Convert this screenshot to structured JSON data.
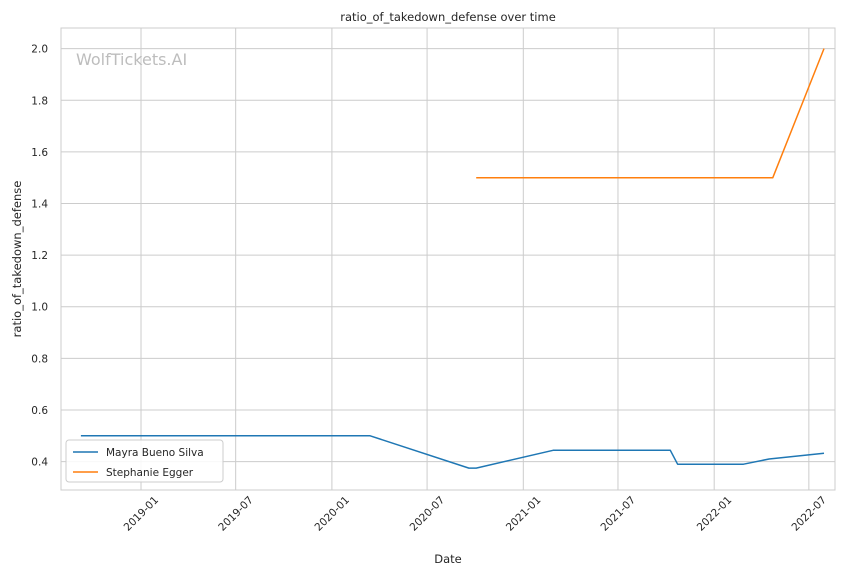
{
  "chart_data": {
    "type": "line",
    "title": "ratio_of_takedown_defense over time",
    "xlabel": "Date",
    "ylabel": "ratio_of_takedown_defense",
    "watermark": "WolfTickets.AI",
    "x_axis_type": "date",
    "xlim": [
      "2018-08-01",
      "2022-08-20"
    ],
    "ylim": [
      0.29,
      2.08
    ],
    "x_ticks": [
      "2019-01-01",
      "2019-07-01",
      "2020-01-01",
      "2020-07-01",
      "2021-01-01",
      "2021-07-01",
      "2022-01-01",
      "2022-07-01"
    ],
    "x_tick_labels": [
      "2019-01",
      "2019-07",
      "2020-01",
      "2020-07",
      "2021-01",
      "2021-07",
      "2022-01",
      "2022-07"
    ],
    "y_ticks": [
      0.4,
      0.6,
      0.8,
      1.0,
      1.2,
      1.4,
      1.6,
      1.8,
      2.0
    ],
    "y_tick_labels": [
      "0.4",
      "0.6",
      "0.8",
      "1.0",
      "1.2",
      "1.4",
      "1.6",
      "1.8",
      "2.0"
    ],
    "grid": true,
    "legend_position": "lower-left",
    "series": [
      {
        "name": "Mayra Bueno Silva",
        "color": "#1f77b4",
        "points": [
          {
            "x": "2018-09-08",
            "y": 0.5
          },
          {
            "x": "2020-03-14",
            "y": 0.5
          },
          {
            "x": "2020-09-19",
            "y": 0.375
          },
          {
            "x": "2020-10-03",
            "y": 0.375
          },
          {
            "x": "2021-02-27",
            "y": 0.444
          },
          {
            "x": "2021-10-09",
            "y": 0.444
          },
          {
            "x": "2021-10-23",
            "y": 0.39
          },
          {
            "x": "2022-02-26",
            "y": 0.39
          },
          {
            "x": "2022-04-16",
            "y": 0.41
          },
          {
            "x": "2022-07-30",
            "y": 0.432
          }
        ]
      },
      {
        "name": "Stephanie Egger",
        "color": "#ff7f0e",
        "points": [
          {
            "x": "2020-10-03",
            "y": 1.5
          },
          {
            "x": "2022-04-23",
            "y": 1.5
          },
          {
            "x": "2022-07-30",
            "y": 2.0
          }
        ]
      }
    ]
  }
}
